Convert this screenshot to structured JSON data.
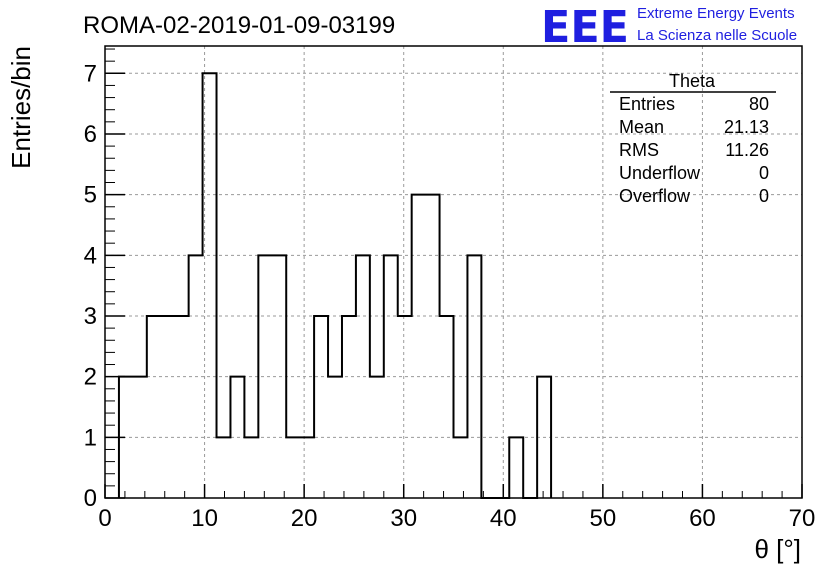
{
  "chart_data": {
    "type": "bar",
    "title": "ROMA-02-2019-01-09-03199",
    "xlabel": "θ [°]",
    "ylabel": "Entries/bin",
    "xlim": [
      0,
      70
    ],
    "ylim": [
      0,
      7.45
    ],
    "x_ticks": [
      0,
      10,
      20,
      30,
      40,
      50,
      60,
      70
    ],
    "y_ticks": [
      0,
      1,
      2,
      3,
      4,
      5,
      6,
      7
    ],
    "grid": true,
    "bin_edges": [
      1.4,
      2.8,
      4.2,
      5.6,
      7.0,
      8.4,
      9.8,
      11.2,
      12.6,
      14.0,
      15.4,
      16.8,
      18.2,
      19.6,
      21.0,
      22.4,
      23.8,
      25.2,
      26.6,
      28.0,
      29.4,
      30.8,
      32.2,
      33.6,
      35.0,
      36.4,
      37.8,
      39.2,
      40.6,
      42.0,
      43.4,
      44.8
    ],
    "values": [
      2,
      2,
      3,
      3,
      3,
      4,
      7,
      1,
      2,
      1,
      4,
      4,
      1,
      1,
      3,
      2,
      3,
      4,
      2,
      4,
      3,
      5,
      5,
      3,
      1,
      4,
      0,
      0,
      1,
      0,
      2
    ],
    "stats_box": {
      "title": "Theta",
      "rows": [
        {
          "label": "Entries",
          "value": "80"
        },
        {
          "label": "Mean",
          "value": "21.13"
        },
        {
          "label": "RMS",
          "value": "11.26"
        },
        {
          "label": "Underflow",
          "value": "0"
        },
        {
          "label": "Overflow",
          "value": "0"
        }
      ]
    }
  },
  "logo": {
    "mark": "EEE",
    "line1": "Extreme Energy Events",
    "line2": "La Scienza nelle Scuole",
    "color": "#1f1fe0"
  }
}
